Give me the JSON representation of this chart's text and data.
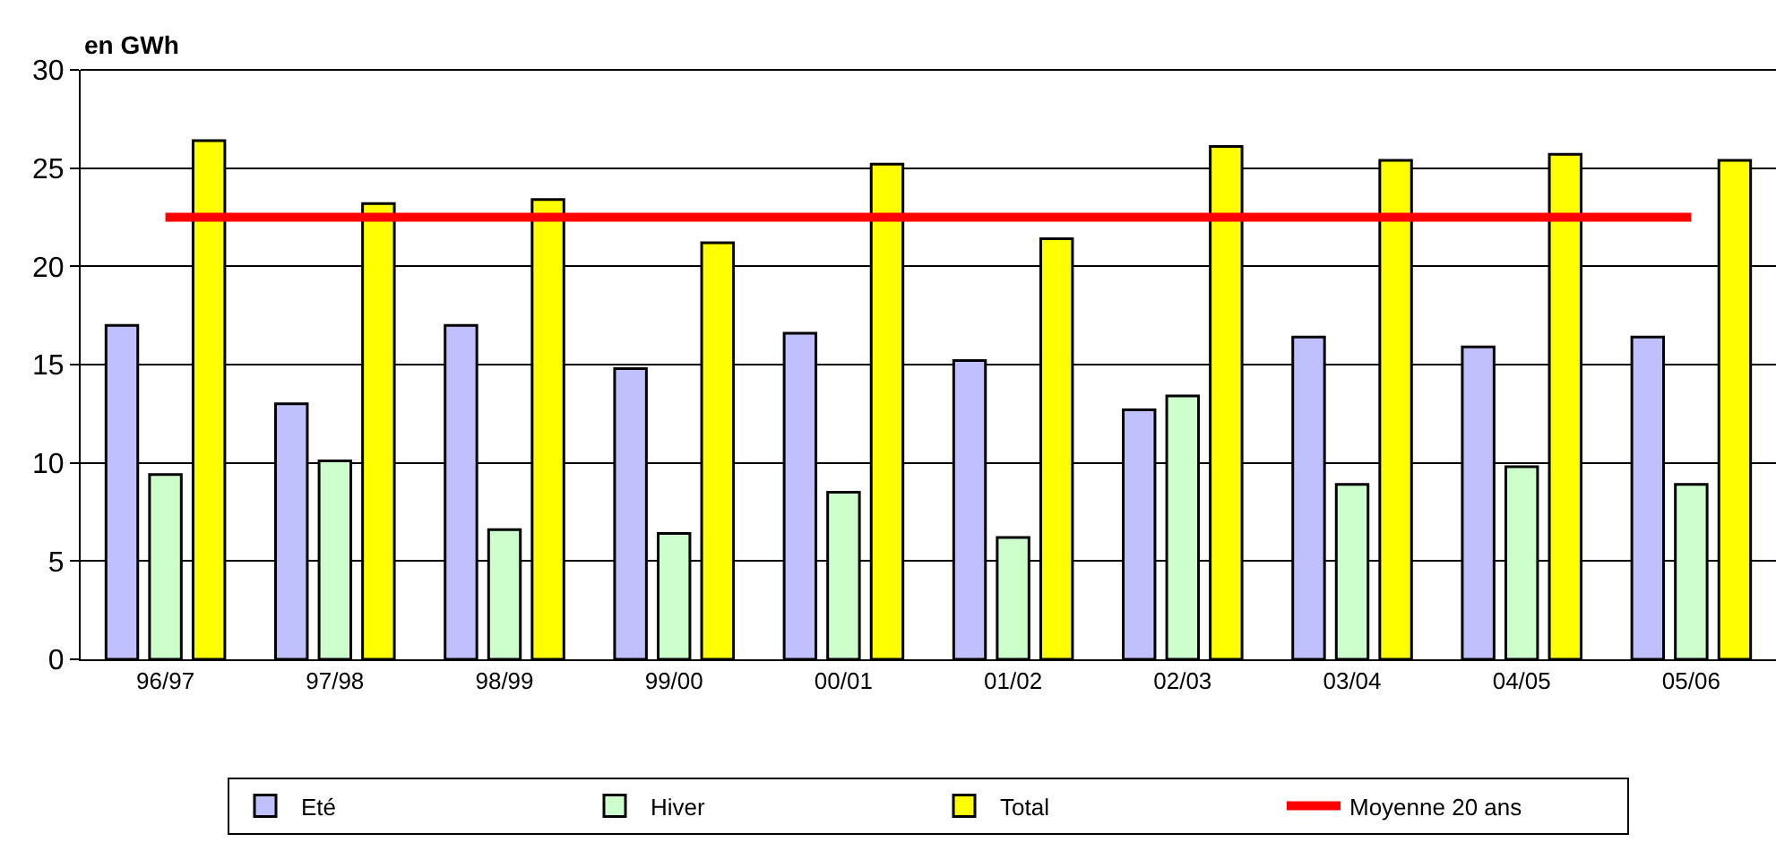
{
  "chart_data": {
    "type": "bar",
    "ylabel": "en GWh",
    "categories": [
      "96/97",
      "97/98",
      "98/99",
      "99/00",
      "00/01",
      "01/02",
      "02/03",
      "03/04",
      "04/05",
      "05/06"
    ],
    "series": [
      {
        "name": "Eté",
        "color": "#c0c0ff",
        "values": [
          17.0,
          13.0,
          17.0,
          14.8,
          16.6,
          15.2,
          12.7,
          16.4,
          15.9,
          16.4
        ]
      },
      {
        "name": "Hiver",
        "color": "#ccffcc",
        "values": [
          9.4,
          10.1,
          6.6,
          6.4,
          8.5,
          6.2,
          13.4,
          8.9,
          9.8,
          8.9
        ]
      },
      {
        "name": "Total",
        "color": "#ffff00",
        "values": [
          26.4,
          23.2,
          23.4,
          21.2,
          25.2,
          21.4,
          26.1,
          25.4,
          25.7,
          25.4
        ]
      },
      {
        "name": "Moyenne 20 ans",
        "type": "line",
        "color": "#ff0000",
        "values": [
          22.5,
          22.5,
          22.5,
          22.5,
          22.5,
          22.5,
          22.5,
          22.5,
          22.5,
          22.5
        ]
      }
    ],
    "ylim": [
      0,
      30
    ],
    "yticks": [
      0,
      5,
      10,
      15,
      20,
      25,
      30
    ],
    "grid": "y",
    "legend": "bottom",
    "marker": "none"
  }
}
